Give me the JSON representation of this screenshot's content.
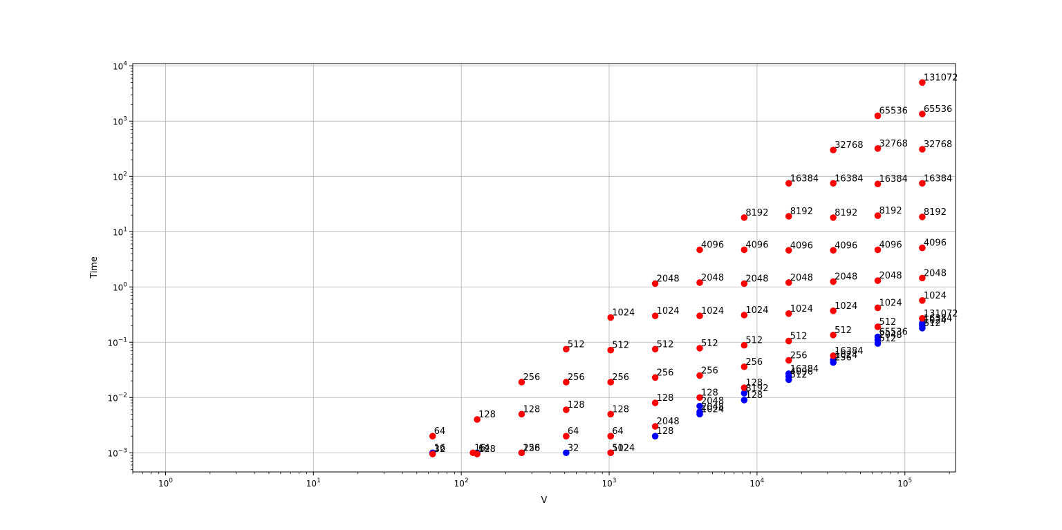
{
  "chart_data": {
    "type": "scatter",
    "title": "",
    "xlabel": "V",
    "ylabel": "Time",
    "xscale": "log",
    "yscale": "log",
    "xlim": [
      0.6,
      220000
    ],
    "ylim": [
      0.00045,
      11000
    ],
    "grid": true,
    "x_ticks": [
      {
        "base": "10",
        "exp": "0",
        "value": 1
      },
      {
        "base": "10",
        "exp": "1",
        "value": 10
      },
      {
        "base": "10",
        "exp": "2",
        "value": 100
      },
      {
        "base": "10",
        "exp": "3",
        "value": 1000
      },
      {
        "base": "10",
        "exp": "4",
        "value": 10000
      },
      {
        "base": "10",
        "exp": "5",
        "value": 100000
      }
    ],
    "y_ticks": [
      {
        "base": "10",
        "exp": "−3",
        "value": 0.001
      },
      {
        "base": "10",
        "exp": "−2",
        "value": 0.01
      },
      {
        "base": "10",
        "exp": "−1",
        "value": 0.1
      },
      {
        "base": "10",
        "exp": "0",
        "value": 1
      },
      {
        "base": "10",
        "exp": "1",
        "value": 10
      },
      {
        "base": "10",
        "exp": "2",
        "value": 100
      },
      {
        "base": "10",
        "exp": "3",
        "value": 1000
      },
      {
        "base": "10",
        "exp": "4",
        "value": 10000
      }
    ],
    "series": [
      {
        "color": "#0000ff",
        "points": [
          {
            "x": 64,
            "y": 0.001,
            "label": "16"
          },
          {
            "x": 128,
            "y": 0.001,
            "label": "64"
          },
          {
            "x": 256,
            "y": 0.001,
            "label": "128"
          },
          {
            "x": 512,
            "y": 0.001,
            "label": "32"
          },
          {
            "x": 1024,
            "y": 0.001,
            "label": "512"
          },
          {
            "x": 2048,
            "y": 0.002,
            "label": "128"
          },
          {
            "x": 4096,
            "y": 0.005,
            "label": "1024"
          },
          {
            "x": 4096,
            "y": 0.0055,
            "label": "2048"
          },
          {
            "x": 4096,
            "y": 0.007,
            "label": "2048"
          },
          {
            "x": 8192,
            "y": 0.009,
            "label": "128"
          },
          {
            "x": 8192,
            "y": 0.012,
            "label": "8192"
          },
          {
            "x": 16384,
            "y": 0.021,
            "label": "512"
          },
          {
            "x": 16384,
            "y": 0.024,
            "label": "4096"
          },
          {
            "x": 16384,
            "y": 0.027,
            "label": "16384"
          },
          {
            "x": 32768,
            "y": 0.043,
            "label": "256"
          },
          {
            "x": 32768,
            "y": 0.048,
            "label": "1024"
          },
          {
            "x": 65536,
            "y": 0.095,
            "label": "512"
          },
          {
            "x": 65536,
            "y": 0.11,
            "label": "2048"
          },
          {
            "x": 65536,
            "y": 0.125,
            "label": "65536"
          },
          {
            "x": 131072,
            "y": 0.18,
            "label": "512"
          },
          {
            "x": 131072,
            "y": 0.2,
            "label": "1024"
          },
          {
            "x": 131072,
            "y": 0.22,
            "label": "16384"
          }
        ]
      },
      {
        "color": "#ff0000",
        "points": [
          {
            "x": 64,
            "y": 0.002,
            "label": "64"
          },
          {
            "x": 64,
            "y": 0.00095,
            "label": "32"
          },
          {
            "x": 120,
            "y": 0.001,
            "label": "16"
          },
          {
            "x": 128,
            "y": 0.00095,
            "label": "128"
          },
          {
            "x": 128,
            "y": 0.004,
            "label": "128"
          },
          {
            "x": 256,
            "y": 0.019,
            "label": "256"
          },
          {
            "x": 256,
            "y": 0.005,
            "label": "128"
          },
          {
            "x": 256,
            "y": 0.001,
            "label": "256"
          },
          {
            "x": 512,
            "y": 0.075,
            "label": "512"
          },
          {
            "x": 512,
            "y": 0.019,
            "label": "256"
          },
          {
            "x": 512,
            "y": 0.006,
            "label": "128"
          },
          {
            "x": 512,
            "y": 0.002,
            "label": "64"
          },
          {
            "x": 1024,
            "y": 0.28,
            "label": "1024"
          },
          {
            "x": 1024,
            "y": 0.072,
            "label": "512"
          },
          {
            "x": 1024,
            "y": 0.019,
            "label": "256"
          },
          {
            "x": 1024,
            "y": 0.005,
            "label": "128"
          },
          {
            "x": 1024,
            "y": 0.002,
            "label": "64"
          },
          {
            "x": 1024,
            "y": 0.001,
            "label": "1024"
          },
          {
            "x": 2048,
            "y": 1.15,
            "label": "2048"
          },
          {
            "x": 2048,
            "y": 0.3,
            "label": "1024"
          },
          {
            "x": 2048,
            "y": 0.075,
            "label": "512"
          },
          {
            "x": 2048,
            "y": 0.023,
            "label": "256"
          },
          {
            "x": 2048,
            "y": 0.008,
            "label": "128"
          },
          {
            "x": 2048,
            "y": 0.003,
            "label": "2048"
          },
          {
            "x": 4096,
            "y": 4.7,
            "label": "4096"
          },
          {
            "x": 4096,
            "y": 1.2,
            "label": "2048"
          },
          {
            "x": 4096,
            "y": 0.3,
            "label": "1024"
          },
          {
            "x": 4096,
            "y": 0.078,
            "label": "512"
          },
          {
            "x": 4096,
            "y": 0.025,
            "label": "256"
          },
          {
            "x": 4096,
            "y": 0.01,
            "label": "128"
          },
          {
            "x": 8192,
            "y": 18.0,
            "label": "8192"
          },
          {
            "x": 8192,
            "y": 4.7,
            "label": "4096"
          },
          {
            "x": 8192,
            "y": 1.15,
            "label": "2048"
          },
          {
            "x": 8192,
            "y": 0.31,
            "label": "1024"
          },
          {
            "x": 8192,
            "y": 0.088,
            "label": "512"
          },
          {
            "x": 8192,
            "y": 0.036,
            "label": "256"
          },
          {
            "x": 8192,
            "y": 0.015,
            "label": "128"
          },
          {
            "x": 16384,
            "y": 75,
            "label": "16384"
          },
          {
            "x": 16384,
            "y": 19,
            "label": "8192"
          },
          {
            "x": 16384,
            "y": 4.6,
            "label": "4096"
          },
          {
            "x": 16384,
            "y": 1.2,
            "label": "2048"
          },
          {
            "x": 16384,
            "y": 0.33,
            "label": "1024"
          },
          {
            "x": 16384,
            "y": 0.105,
            "label": "512"
          },
          {
            "x": 16384,
            "y": 0.047,
            "label": "256"
          },
          {
            "x": 32768,
            "y": 300,
            "label": "32768"
          },
          {
            "x": 32768,
            "y": 75,
            "label": "16384"
          },
          {
            "x": 32768,
            "y": 18,
            "label": "8192"
          },
          {
            "x": 32768,
            "y": 4.6,
            "label": "4096"
          },
          {
            "x": 32768,
            "y": 1.25,
            "label": "2048"
          },
          {
            "x": 32768,
            "y": 0.37,
            "label": "1024"
          },
          {
            "x": 32768,
            "y": 0.135,
            "label": "512"
          },
          {
            "x": 32768,
            "y": 0.057,
            "label": "16384"
          },
          {
            "x": 65536,
            "y": 1250,
            "label": "65536"
          },
          {
            "x": 65536,
            "y": 320,
            "label": "32768"
          },
          {
            "x": 65536,
            "y": 73,
            "label": "16384"
          },
          {
            "x": 65536,
            "y": 19.5,
            "label": "8192"
          },
          {
            "x": 65536,
            "y": 4.7,
            "label": "4096"
          },
          {
            "x": 65536,
            "y": 1.3,
            "label": "2048"
          },
          {
            "x": 65536,
            "y": 0.42,
            "label": "1024"
          },
          {
            "x": 65536,
            "y": 0.19,
            "label": "512"
          },
          {
            "x": 131072,
            "y": 5000,
            "label": "131072"
          },
          {
            "x": 131072,
            "y": 1350,
            "label": "65536"
          },
          {
            "x": 131072,
            "y": 310,
            "label": "32768"
          },
          {
            "x": 131072,
            "y": 75,
            "label": "16384"
          },
          {
            "x": 131072,
            "y": 18.5,
            "label": "8192"
          },
          {
            "x": 131072,
            "y": 5.1,
            "label": "4096"
          },
          {
            "x": 131072,
            "y": 1.45,
            "label": "2048"
          },
          {
            "x": 131072,
            "y": 0.57,
            "label": "1024"
          },
          {
            "x": 131072,
            "y": 0.27,
            "label": "131072"
          }
        ]
      }
    ]
  }
}
